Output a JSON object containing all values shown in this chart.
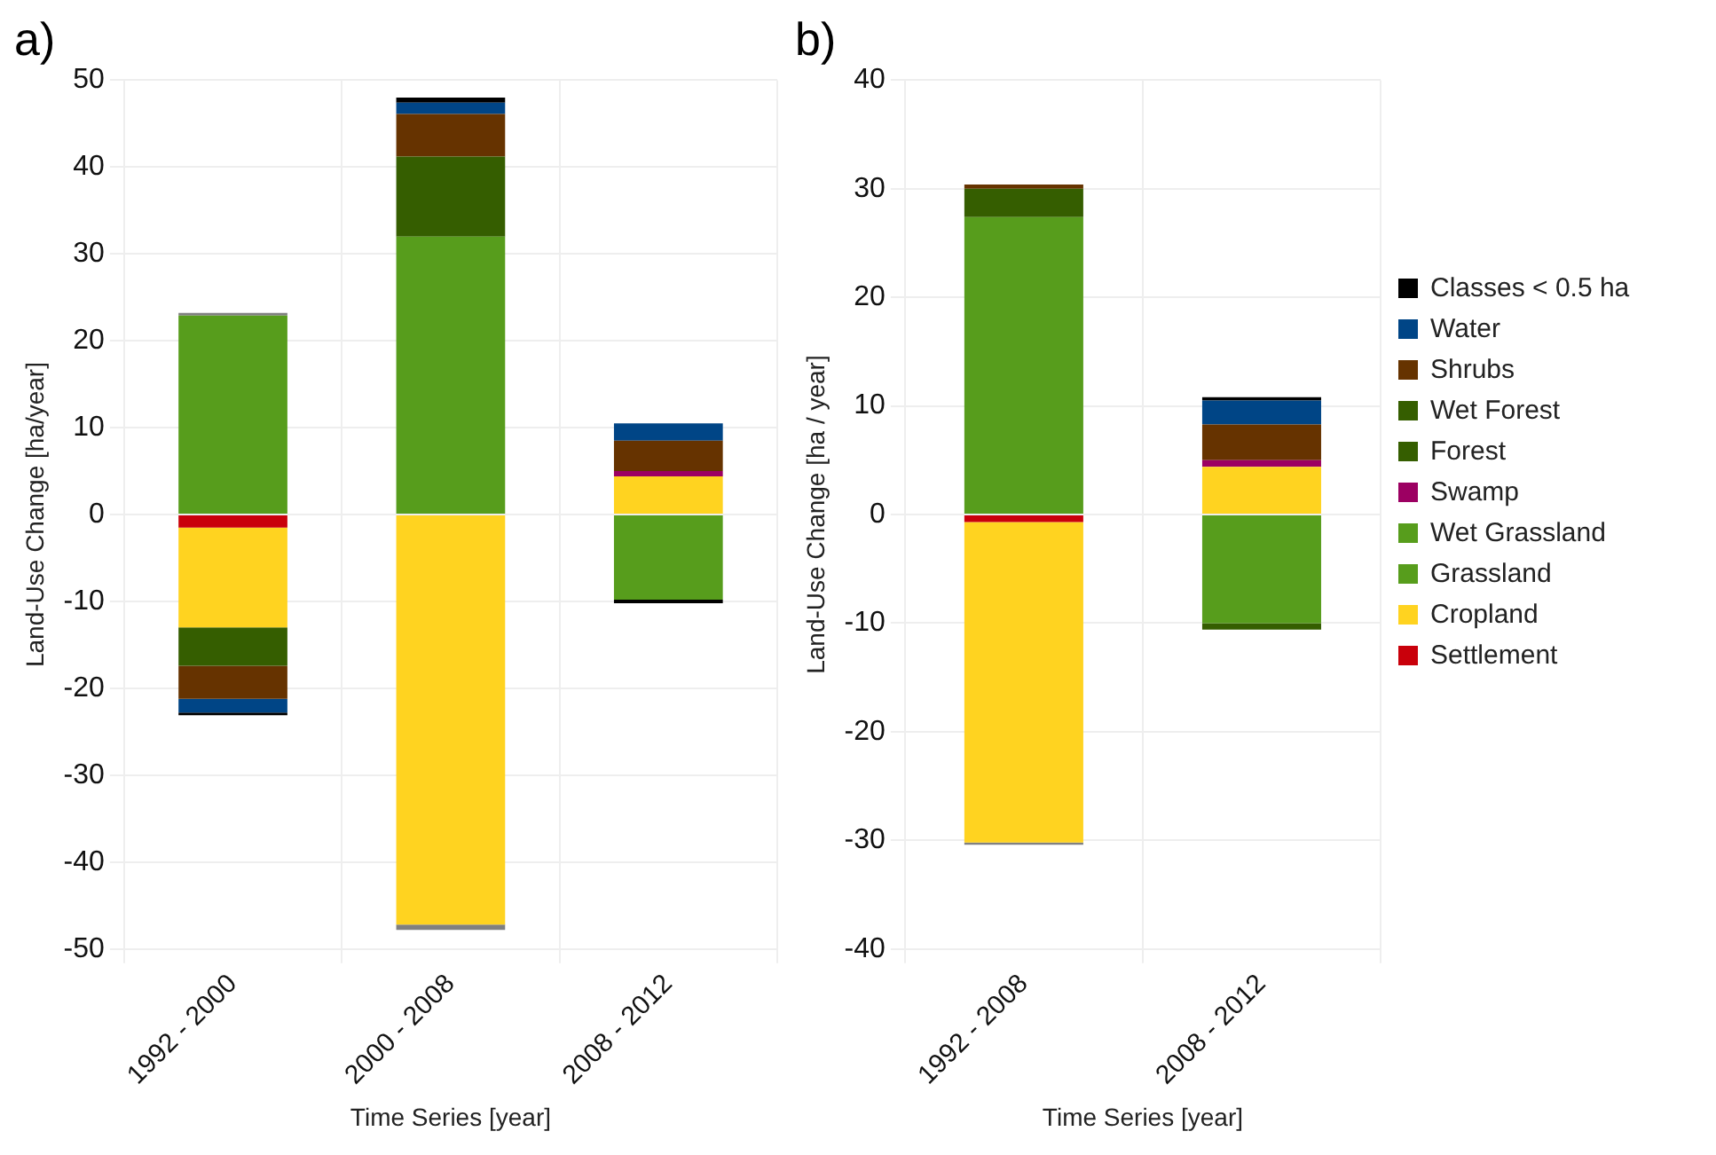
{
  "chart_data": [
    {
      "type": "bar",
      "title": "a)",
      "xlabel": "Time Series [year]",
      "ylabel": "Land-Use Change [ha/year]",
      "categories": [
        "1992 - 2000",
        "2000 - 2008",
        "2008 - 2012"
      ],
      "stacked": true,
      "grid": true,
      "legend": false,
      "ylim": [
        -50,
        50
      ],
      "yticks": [
        -50,
        -40,
        -30,
        -20,
        -10,
        0,
        10,
        20,
        30,
        40,
        50
      ],
      "series": [
        {
          "color": "#c9000b",
          "values": [
            -1.5,
            null,
            null
          ]
        },
        {
          "color": "#ffd320",
          "values": [
            -11.5,
            -47.2,
            4.4
          ]
        },
        {
          "color": "#579d1c",
          "values": [
            22.9,
            32.0,
            -9.8
          ]
        },
        {
          "color": "#9c0062",
          "values": [
            null,
            null,
            0.6
          ]
        },
        {
          "color": "#355e00",
          "values": [
            -4.4,
            9.2,
            null
          ]
        },
        {
          "color": "#663300",
          "values": [
            -3.8,
            4.9,
            3.5
          ]
        },
        {
          "color": "#004586",
          "values": [
            -1.6,
            1.3,
            2.0
          ]
        },
        {
          "color": "#000000",
          "values": [
            -0.3,
            0.6,
            -0.4
          ]
        },
        {
          "color": "#808080",
          "values": [
            0.3,
            -0.6,
            null
          ]
        }
      ]
    },
    {
      "type": "bar",
      "title": "b)",
      "xlabel": "Time Series [year]",
      "ylabel": "Land-Use Change [ha / year]",
      "categories": [
        "1992 - 2008",
        "2008 - 2012"
      ],
      "stacked": true,
      "grid": true,
      "legend": "right",
      "ylim": [
        -40,
        40
      ],
      "yticks": [
        -40,
        -30,
        -20,
        -10,
        0,
        10,
        20,
        30,
        40
      ],
      "series": [
        {
          "name": "Settlement",
          "color": "#c9000b",
          "values": [
            -0.7,
            null
          ]
        },
        {
          "name": "Cropland",
          "color": "#ffd320",
          "values": [
            -29.5,
            4.4
          ]
        },
        {
          "name": "Grassland",
          "color": "#579d1c",
          "values": [
            23.7,
            null
          ]
        },
        {
          "name": "Wet Grassland",
          "color": "#579d1c",
          "values": [
            3.7,
            -10.0
          ]
        },
        {
          "name": "Swamp",
          "color": "#9c0062",
          "values": [
            null,
            0.6
          ]
        },
        {
          "name": "Forest",
          "color": "#355e00",
          "values": [
            null,
            -0.6
          ]
        },
        {
          "name": "Wet Forest",
          "color": "#355e00",
          "values": [
            2.6,
            null
          ]
        },
        {
          "name": "Shrubs",
          "color": "#663300",
          "values": [
            0.4,
            3.3
          ]
        },
        {
          "name": "Water",
          "color": "#004586",
          "values": [
            null,
            2.2
          ]
        },
        {
          "name": "Classes < 0.5 ha",
          "color": "#000000",
          "values": [
            null,
            0.3
          ]
        },
        {
          "color": "#808080",
          "values": [
            -0.2,
            null
          ]
        }
      ]
    }
  ]
}
